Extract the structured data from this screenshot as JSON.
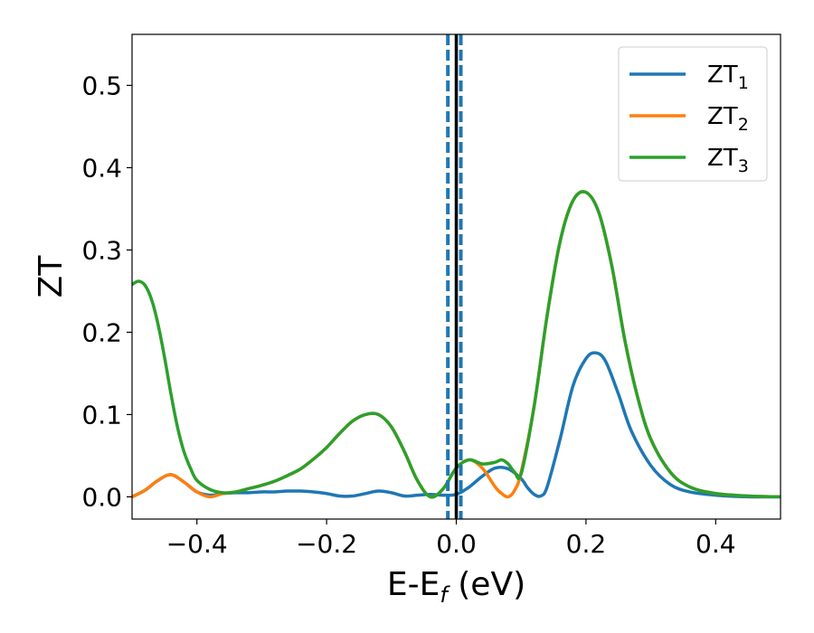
{
  "chart_data": {
    "type": "line",
    "title": "",
    "xlabel": {
      "main": "E-E",
      "sub": "f",
      "suffix": " (eV)"
    },
    "ylabel": "ZT",
    "xlim": [
      -0.5,
      0.5
    ],
    "ylim": [
      -0.027,
      0.562
    ],
    "xticks": [
      -0.4,
      -0.2,
      0.0,
      0.2,
      0.4
    ],
    "xtick_labels": [
      "−0.4",
      "−0.2",
      "0.0",
      "0.2",
      "0.4"
    ],
    "yticks": [
      0.0,
      0.1,
      0.2,
      0.3,
      0.4,
      0.5
    ],
    "ytick_labels": [
      "0.0",
      "0.1",
      "0.2",
      "0.3",
      "0.4",
      "0.5"
    ],
    "grid": false,
    "legend_position": "top-right",
    "vlines": [
      {
        "x": 0.0,
        "style": "solid",
        "color": "#000000"
      },
      {
        "x": -0.013,
        "style": "dashed",
        "color": "#1f77b4"
      },
      {
        "x": 0.007,
        "style": "dashed",
        "color": "#1f77b4"
      }
    ],
    "series": [
      {
        "name": "ZT",
        "sub": "1",
        "color": "#1f77b4",
        "x": [
          -0.5,
          -0.48,
          -0.46,
          -0.44,
          -0.42,
          -0.4,
          -0.38,
          -0.36,
          -0.34,
          -0.32,
          -0.3,
          -0.28,
          -0.26,
          -0.24,
          -0.22,
          -0.2,
          -0.18,
          -0.16,
          -0.14,
          -0.12,
          -0.1,
          -0.08,
          -0.06,
          -0.04,
          -0.02,
          0.0,
          0.02,
          0.04,
          0.06,
          0.08,
          0.1,
          0.11,
          0.12,
          0.13,
          0.14,
          0.16,
          0.18,
          0.2,
          0.215,
          0.23,
          0.25,
          0.27,
          0.3,
          0.33,
          0.36,
          0.4,
          0.45,
          0.5
        ],
        "y": [
          0.0,
          0.008,
          0.02,
          0.027,
          0.018,
          0.006,
          0.002,
          0.004,
          0.005,
          0.005,
          0.006,
          0.006,
          0.007,
          0.007,
          0.006,
          0.004,
          0.001,
          0.001,
          0.004,
          0.007,
          0.005,
          0.001,
          0.002,
          0.003,
          0.002,
          0.003,
          0.012,
          0.025,
          0.035,
          0.034,
          0.022,
          0.011,
          0.003,
          0.001,
          0.012,
          0.07,
          0.135,
          0.168,
          0.175,
          0.165,
          0.125,
          0.08,
          0.038,
          0.015,
          0.006,
          0.002,
          0.0,
          0.0
        ]
      },
      {
        "name": "ZT",
        "sub": "2",
        "color": "#ff7f0e",
        "x": [
          -0.5,
          -0.48,
          -0.46,
          -0.44,
          -0.42,
          -0.4,
          -0.38,
          -0.36,
          -0.34,
          -0.32,
          -0.3,
          -0.28,
          -0.26,
          -0.24,
          -0.22,
          -0.2,
          -0.18,
          -0.16,
          -0.14,
          -0.12,
          -0.1,
          -0.08,
          -0.06,
          -0.04,
          -0.02,
          0.0,
          0.02,
          0.04,
          0.06,
          0.07,
          0.08,
          0.09,
          0.1,
          0.12,
          0.14,
          0.16,
          0.18,
          0.2,
          0.22,
          0.24,
          0.26,
          0.28,
          0.3,
          0.33,
          0.36,
          0.4,
          0.45,
          0.5
        ],
        "y": [
          0.0,
          0.008,
          0.02,
          0.027,
          0.018,
          0.006,
          0.0,
          0.004,
          0.006,
          0.01,
          0.014,
          0.019,
          0.026,
          0.034,
          0.046,
          0.06,
          0.077,
          0.092,
          0.1,
          0.1,
          0.085,
          0.055,
          0.02,
          0.0,
          0.01,
          0.035,
          0.045,
          0.035,
          0.012,
          0.004,
          0.0,
          0.008,
          0.03,
          0.11,
          0.22,
          0.31,
          0.36,
          0.37,
          0.345,
          0.28,
          0.19,
          0.12,
          0.07,
          0.03,
          0.012,
          0.004,
          0.001,
          0.0
        ]
      },
      {
        "name": "ZT",
        "sub": "3",
        "color": "#2ca02c",
        "x": [
          -0.5,
          -0.49,
          -0.48,
          -0.47,
          -0.46,
          -0.45,
          -0.44,
          -0.43,
          -0.42,
          -0.41,
          -0.4,
          -0.38,
          -0.36,
          -0.34,
          -0.32,
          -0.3,
          -0.28,
          -0.26,
          -0.24,
          -0.22,
          -0.2,
          -0.18,
          -0.16,
          -0.14,
          -0.12,
          -0.1,
          -0.08,
          -0.06,
          -0.04,
          -0.02,
          0.0,
          0.02,
          0.04,
          0.06,
          0.07,
          0.08,
          0.09,
          0.1,
          0.12,
          0.14,
          0.16,
          0.18,
          0.2,
          0.22,
          0.24,
          0.26,
          0.28,
          0.3,
          0.33,
          0.36,
          0.4,
          0.45,
          0.5
        ],
        "y": [
          0.258,
          0.262,
          0.257,
          0.24,
          0.21,
          0.17,
          0.125,
          0.085,
          0.055,
          0.035,
          0.02,
          0.009,
          0.005,
          0.006,
          0.01,
          0.014,
          0.019,
          0.026,
          0.034,
          0.046,
          0.06,
          0.077,
          0.092,
          0.1,
          0.1,
          0.085,
          0.055,
          0.02,
          0.0,
          0.01,
          0.035,
          0.045,
          0.04,
          0.042,
          0.045,
          0.04,
          0.03,
          0.028,
          0.11,
          0.22,
          0.31,
          0.36,
          0.37,
          0.345,
          0.28,
          0.19,
          0.12,
          0.07,
          0.03,
          0.012,
          0.004,
          0.001,
          0.0
        ]
      }
    ]
  }
}
